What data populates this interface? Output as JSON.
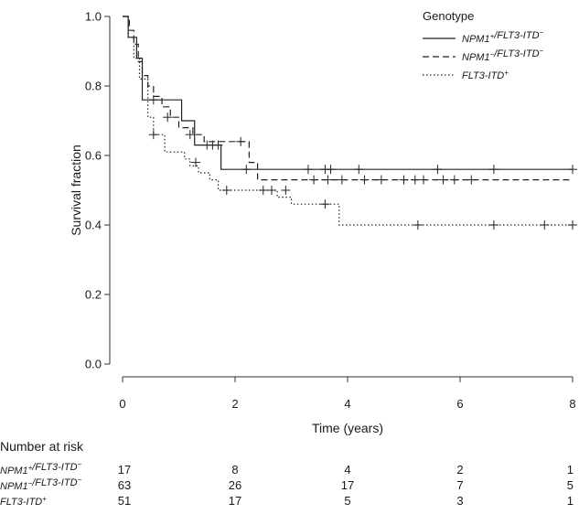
{
  "chart_data": {
    "type": "line",
    "subtype": "kaplan-meier",
    "xlabel": "Time (years)",
    "ylabel": "Survival fraction",
    "xlim": [
      0,
      8
    ],
    "ylim": [
      0,
      1
    ],
    "xticks": [
      0,
      2,
      4,
      6,
      8
    ],
    "yticks": [
      0.0,
      0.2,
      0.4,
      0.6,
      0.8,
      1.0
    ],
    "xtick_labels": [
      "0",
      "2",
      "4",
      "6",
      "8"
    ],
    "ytick_labels": [
      "0.0",
      "0.2",
      "0.4",
      "0.6",
      "0.8",
      "1.0"
    ],
    "legend": {
      "title": "Genotype",
      "placement": "top-right",
      "entries": [
        {
          "line_style": "solid",
          "base": "NPM1",
          "sup1": "+",
          "mid": "/FLT3-ITD",
          "sup2": "−"
        },
        {
          "line_style": "dashed",
          "base": "NPM1",
          "sup1": "−",
          "mid": "/FLT3-ITD",
          "sup2": "−"
        },
        {
          "line_style": "dotted",
          "base": "FLT3-ITD",
          "sup1": "+",
          "mid": "",
          "sup2": ""
        }
      ]
    },
    "series": [
      {
        "name": "NPM1+/FLT3-ITD-",
        "line_style": "solid",
        "steps": [
          [
            0,
            1.0
          ],
          [
            0.1,
            0.94
          ],
          [
            0.25,
            0.88
          ],
          [
            0.35,
            0.76
          ],
          [
            1.05,
            0.7
          ],
          [
            1.28,
            0.63
          ],
          [
            1.75,
            0.56
          ],
          [
            8,
            0.56
          ]
        ],
        "censored": [
          [
            0.55,
            0.76
          ],
          [
            1.5,
            0.63
          ],
          [
            1.6,
            0.63
          ],
          [
            1.7,
            0.63
          ],
          [
            2.2,
            0.56
          ],
          [
            3.3,
            0.56
          ],
          [
            3.6,
            0.56
          ],
          [
            3.7,
            0.56
          ],
          [
            4.2,
            0.56
          ],
          [
            5.6,
            0.56
          ],
          [
            6.6,
            0.56
          ],
          [
            8.0,
            0.56
          ]
        ]
      },
      {
        "name": "NPM1-/FLT3-ITD-",
        "line_style": "dashed",
        "steps": [
          [
            0,
            1.0
          ],
          [
            0.12,
            0.96
          ],
          [
            0.2,
            0.92
          ],
          [
            0.28,
            0.87
          ],
          [
            0.35,
            0.83
          ],
          [
            0.45,
            0.8
          ],
          [
            0.55,
            0.77
          ],
          [
            0.7,
            0.74
          ],
          [
            0.85,
            0.71
          ],
          [
            1.0,
            0.68
          ],
          [
            1.25,
            0.66
          ],
          [
            1.45,
            0.64
          ],
          [
            1.75,
            0.64
          ],
          [
            2.25,
            0.58
          ],
          [
            2.4,
            0.53
          ],
          [
            8,
            0.53
          ]
        ],
        "censored": [
          [
            0.8,
            0.71
          ],
          [
            1.2,
            0.66
          ],
          [
            2.1,
            0.64
          ],
          [
            3.4,
            0.53
          ],
          [
            3.65,
            0.53
          ],
          [
            3.9,
            0.53
          ],
          [
            4.3,
            0.53
          ],
          [
            4.6,
            0.53
          ],
          [
            5.0,
            0.53
          ],
          [
            5.2,
            0.53
          ],
          [
            5.35,
            0.53
          ],
          [
            5.7,
            0.53
          ],
          [
            5.9,
            0.53
          ],
          [
            6.2,
            0.53
          ]
        ]
      },
      {
        "name": "FLT3-ITD+",
        "line_style": "dotted",
        "steps": [
          [
            0,
            1.0
          ],
          [
            0.1,
            0.94
          ],
          [
            0.2,
            0.88
          ],
          [
            0.3,
            0.82
          ],
          [
            0.45,
            0.71
          ],
          [
            0.55,
            0.66
          ],
          [
            0.75,
            0.61
          ],
          [
            1.1,
            0.59
          ],
          [
            1.2,
            0.57
          ],
          [
            1.35,
            0.55
          ],
          [
            1.55,
            0.53
          ],
          [
            1.7,
            0.5
          ],
          [
            2.55,
            0.5
          ],
          [
            2.75,
            0.48
          ],
          [
            3.0,
            0.46
          ],
          [
            3.75,
            0.46
          ],
          [
            3.85,
            0.4
          ],
          [
            8,
            0.4
          ]
        ],
        "censored": [
          [
            0.55,
            0.66
          ],
          [
            1.3,
            0.58
          ],
          [
            1.85,
            0.5
          ],
          [
            2.5,
            0.5
          ],
          [
            2.65,
            0.5
          ],
          [
            2.9,
            0.5
          ],
          [
            3.6,
            0.46
          ],
          [
            5.25,
            0.4
          ],
          [
            6.6,
            0.4
          ],
          [
            7.5,
            0.4
          ],
          [
            8.0,
            0.4
          ]
        ]
      }
    ]
  },
  "risk_table": {
    "title": "Number at risk",
    "times": [
      0,
      2,
      4,
      6,
      8
    ],
    "rows": [
      {
        "base": "NPM1",
        "sup1": "+",
        "mid": "/FLT3-ITD",
        "sup2": "−",
        "counts": [
          "17",
          "8",
          "4",
          "2",
          "1"
        ]
      },
      {
        "base": "NPM1",
        "sup1": "−",
        "mid": "/FLT3-ITD",
        "sup2": "−",
        "counts": [
          "63",
          "26",
          "17",
          "7",
          "5"
        ]
      },
      {
        "base": "FLT3-ITD",
        "sup1": "+",
        "mid": "",
        "sup2": "",
        "counts": [
          "51",
          "17",
          "5",
          "3",
          "1"
        ]
      }
    ]
  }
}
